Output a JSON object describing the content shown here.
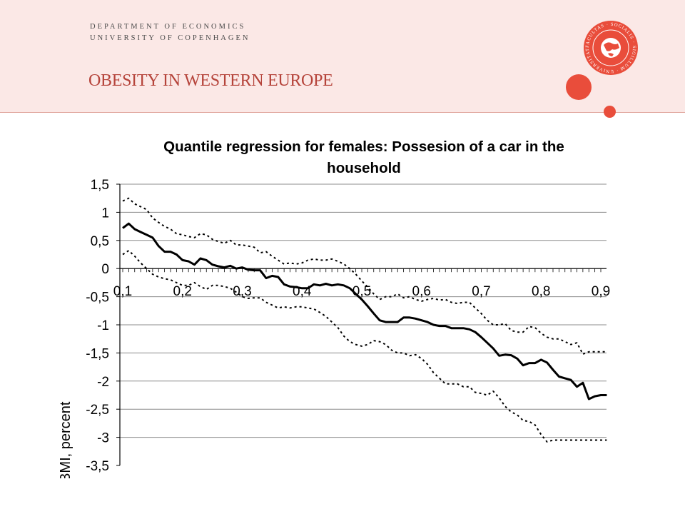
{
  "header": {
    "dept_line1": "DEPARTMENT OF ECONOMICS",
    "dept_line2": "UNIVERSITY OF COPENHAGEN",
    "slide_title": "OBESITY IN WESTERN EUROPE",
    "seal_text": "FACULTAS · SOCIALIS · SIGILLUM · UNIVERSITATIS",
    "accent_color": "#e94d3b",
    "background_color": "#fbe8e6"
  },
  "chart_data": {
    "type": "line",
    "title_line1": "Quantile regression for females: Possesion of a car in the",
    "title_line2": "household",
    "ylabel": "lnBMI, percent",
    "xlabel": "",
    "ylim": [
      -3.5,
      1.5
    ],
    "xlim": [
      0.1,
      0.9
    ],
    "x_ticks": [
      "0,1",
      "0,2",
      "0,3",
      "0,4",
      "0,5",
      "0,6",
      "0,7",
      "0,8",
      "0,9"
    ],
    "y_ticks": [
      "1,5",
      "1",
      "0,5",
      "0",
      "-0,5",
      "-1",
      "-1,5",
      "-2",
      "-2,5",
      "-3",
      "-3,5"
    ],
    "grid": true,
    "series": [
      {
        "style": "solid",
        "x": [
          0.1,
          0.11,
          0.12,
          0.13,
          0.14,
          0.15,
          0.16,
          0.17,
          0.18,
          0.19,
          0.2,
          0.21,
          0.22,
          0.23,
          0.24,
          0.25,
          0.26,
          0.27,
          0.28,
          0.29,
          0.3,
          0.31,
          0.32,
          0.33,
          0.34,
          0.35,
          0.36,
          0.37,
          0.38,
          0.39,
          0.4,
          0.41,
          0.42,
          0.43,
          0.44,
          0.45,
          0.46,
          0.47,
          0.48,
          0.49,
          0.5,
          0.51,
          0.52,
          0.53,
          0.54,
          0.55,
          0.56,
          0.57,
          0.58,
          0.59,
          0.6,
          0.61,
          0.62,
          0.63,
          0.64,
          0.65,
          0.66,
          0.67,
          0.68,
          0.69,
          0.7,
          0.71,
          0.72,
          0.73,
          0.74,
          0.75,
          0.76,
          0.77,
          0.78,
          0.79,
          0.8,
          0.81,
          0.82,
          0.83,
          0.84,
          0.85,
          0.86,
          0.87,
          0.88,
          0.89,
          0.9,
          0.91
        ],
        "values": [
          0.72,
          0.8,
          0.7,
          0.65,
          0.6,
          0.55,
          0.4,
          0.3,
          0.3,
          0.25,
          0.15,
          0.13,
          0.07,
          0.18,
          0.15,
          0.07,
          0.04,
          0.02,
          0.05,
          0.0,
          0.02,
          -0.02,
          -0.03,
          -0.03,
          -0.17,
          -0.13,
          -0.15,
          -0.28,
          -0.32,
          -0.33,
          -0.35,
          -0.35,
          -0.28,
          -0.3,
          -0.27,
          -0.3,
          -0.28,
          -0.3,
          -0.35,
          -0.45,
          -0.55,
          -0.67,
          -0.8,
          -0.92,
          -0.95,
          -0.95,
          -0.95,
          -0.87,
          -0.87,
          -0.89,
          -0.92,
          -0.95,
          -1.0,
          -1.02,
          -1.02,
          -1.06,
          -1.06,
          -1.06,
          -1.08,
          -1.13,
          -1.22,
          -1.32,
          -1.42,
          -1.55,
          -1.53,
          -1.54,
          -1.6,
          -1.72,
          -1.68,
          -1.68,
          -1.62,
          -1.67,
          -1.8,
          -1.92,
          -1.95,
          -1.98,
          -2.1,
          -2.03,
          -2.32,
          -2.27,
          -2.25,
          -2.25
        ]
      },
      {
        "style": "dotted",
        "x": [
          0.1,
          0.11,
          0.12,
          0.13,
          0.14,
          0.15,
          0.16,
          0.17,
          0.18,
          0.19,
          0.2,
          0.21,
          0.22,
          0.23,
          0.24,
          0.25,
          0.26,
          0.27,
          0.28,
          0.29,
          0.3,
          0.31,
          0.32,
          0.33,
          0.34,
          0.35,
          0.36,
          0.37,
          0.38,
          0.39,
          0.4,
          0.41,
          0.42,
          0.43,
          0.44,
          0.45,
          0.46,
          0.47,
          0.48,
          0.49,
          0.5,
          0.51,
          0.52,
          0.53,
          0.54,
          0.55,
          0.56,
          0.57,
          0.58,
          0.59,
          0.6,
          0.61,
          0.62,
          0.63,
          0.64,
          0.65,
          0.66,
          0.67,
          0.68,
          0.69,
          0.7,
          0.71,
          0.72,
          0.73,
          0.74,
          0.75,
          0.76,
          0.77,
          0.78,
          0.79,
          0.8,
          0.81,
          0.82,
          0.83,
          0.84,
          0.85,
          0.86,
          0.87,
          0.88,
          0.89,
          0.9,
          0.91
        ],
        "values": [
          1.2,
          1.25,
          1.15,
          1.1,
          1.05,
          0.9,
          0.82,
          0.75,
          0.7,
          0.62,
          0.6,
          0.57,
          0.55,
          0.62,
          0.6,
          0.52,
          0.48,
          0.45,
          0.5,
          0.42,
          0.42,
          0.4,
          0.38,
          0.28,
          0.3,
          0.22,
          0.15,
          0.08,
          0.1,
          0.08,
          0.1,
          0.15,
          0.17,
          0.15,
          0.15,
          0.17,
          0.13,
          0.08,
          0.0,
          -0.1,
          -0.22,
          -0.33,
          -0.45,
          -0.55,
          -0.5,
          -0.5,
          -0.45,
          -0.52,
          -0.5,
          -0.55,
          -0.58,
          -0.55,
          -0.53,
          -0.56,
          -0.55,
          -0.6,
          -0.62,
          -0.6,
          -0.6,
          -0.7,
          -0.8,
          -0.92,
          -1.0,
          -1.0,
          -0.98,
          -1.1,
          -1.13,
          -1.13,
          -1.03,
          -1.05,
          -1.15,
          -1.22,
          -1.25,
          -1.25,
          -1.3,
          -1.35,
          -1.32,
          -1.52,
          -1.48,
          -1.48,
          -1.48,
          -1.48
        ]
      },
      {
        "style": "dotted",
        "x": [
          0.1,
          0.11,
          0.12,
          0.13,
          0.14,
          0.15,
          0.16,
          0.17,
          0.18,
          0.19,
          0.2,
          0.21,
          0.22,
          0.23,
          0.24,
          0.25,
          0.26,
          0.27,
          0.28,
          0.29,
          0.3,
          0.31,
          0.32,
          0.33,
          0.34,
          0.35,
          0.36,
          0.37,
          0.38,
          0.39,
          0.4,
          0.41,
          0.42,
          0.43,
          0.44,
          0.45,
          0.46,
          0.47,
          0.48,
          0.49,
          0.5,
          0.51,
          0.52,
          0.53,
          0.54,
          0.55,
          0.56,
          0.57,
          0.58,
          0.59,
          0.6,
          0.61,
          0.62,
          0.63,
          0.64,
          0.65,
          0.66,
          0.67,
          0.68,
          0.69,
          0.7,
          0.71,
          0.72,
          0.73,
          0.74,
          0.75,
          0.76,
          0.77,
          0.78,
          0.79,
          0.8,
          0.81,
          0.82,
          0.83,
          0.84,
          0.85,
          0.86,
          0.87,
          0.88,
          0.89,
          0.9,
          0.91
        ],
        "values": [
          0.25,
          0.32,
          0.22,
          0.1,
          0.0,
          -0.1,
          -0.15,
          -0.18,
          -0.2,
          -0.25,
          -0.3,
          -0.3,
          -0.25,
          -0.32,
          -0.37,
          -0.3,
          -0.3,
          -0.32,
          -0.35,
          -0.42,
          -0.5,
          -0.53,
          -0.52,
          -0.52,
          -0.6,
          -0.65,
          -0.7,
          -0.68,
          -0.7,
          -0.68,
          -0.68,
          -0.7,
          -0.72,
          -0.78,
          -0.85,
          -0.95,
          -1.05,
          -1.2,
          -1.3,
          -1.35,
          -1.38,
          -1.35,
          -1.28,
          -1.3,
          -1.35,
          -1.45,
          -1.5,
          -1.5,
          -1.55,
          -1.53,
          -1.6,
          -1.7,
          -1.85,
          -1.95,
          -2.05,
          -2.05,
          -2.05,
          -2.1,
          -2.1,
          -2.2,
          -2.22,
          -2.25,
          -2.18,
          -2.3,
          -2.45,
          -2.55,
          -2.6,
          -2.7,
          -2.72,
          -2.78,
          -2.95,
          -3.08,
          -3.05,
          -3.05,
          -3.05,
          -3.05,
          -3.05,
          -3.05,
          -3.05,
          -3.05,
          -3.05,
          -3.05
        ]
      }
    ]
  }
}
